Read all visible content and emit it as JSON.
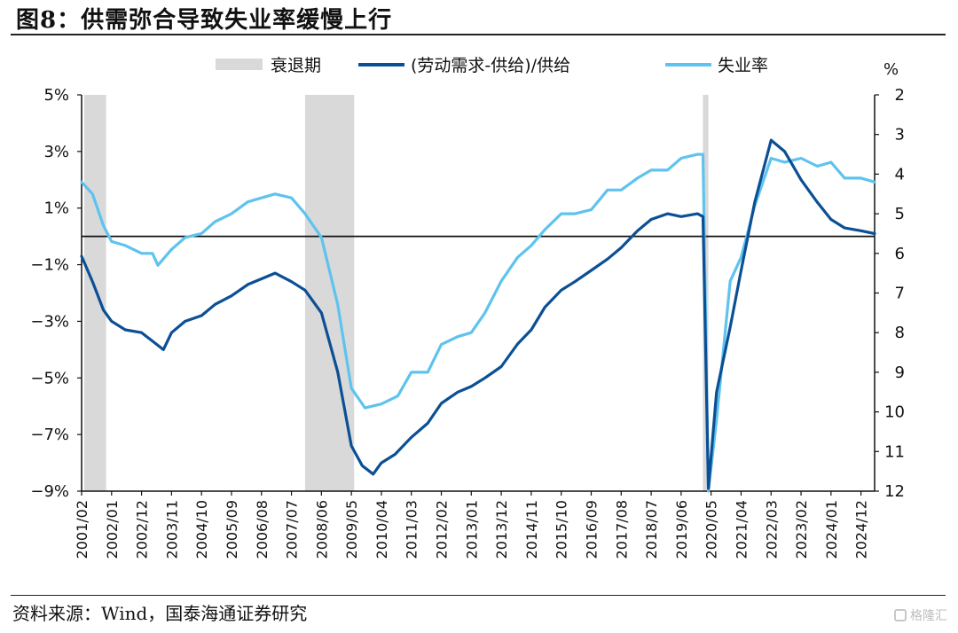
{
  "title": "图8：供需弥合导致失业率缓慢上行",
  "source": "资料来源：Wind，国泰海通证券研究",
  "watermark": "格隆汇",
  "colors": {
    "demand_supply": "#0b4f95",
    "unemployment": "#5ec3ee",
    "recession": "#d9d9d9",
    "axis": "#111111"
  },
  "chart_data": {
    "type": "line",
    "legend": [
      "衰退期",
      "(劳动需求-供给)/供给",
      "失业率"
    ],
    "right_unit": "%",
    "left_axis": {
      "ticks": [
        "5%",
        "3%",
        "1%",
        "-1%",
        "-3%",
        "-5%",
        "-7%",
        "-9%"
      ],
      "range": [
        -9,
        5
      ]
    },
    "right_axis": {
      "ticks": [
        "2",
        "3",
        "4",
        "5",
        "6",
        "7",
        "8",
        "9",
        "10",
        "11",
        "12"
      ],
      "range": [
        12,
        2
      ],
      "inverted": true
    },
    "x_ticks": [
      "2001/02",
      "2002/01",
      "2002/12",
      "2003/11",
      "2004/10",
      "2005/09",
      "2006/08",
      "2007/07",
      "2008/06",
      "2009/05",
      "2010/04",
      "2011/03",
      "2012/02",
      "2013/01",
      "2013/12",
      "2014/11",
      "2015/10",
      "2016/09",
      "2017/08",
      "2018/07",
      "2019/06",
      "2020/05",
      "2021/04",
      "2022/03",
      "2023/02",
      "2024/01",
      "2024/12"
    ],
    "recessions": [
      [
        "2001/03",
        "2001/11"
      ],
      [
        "2007/12",
        "2009/06"
      ],
      [
        "2020/02",
        "2020/04"
      ]
    ],
    "series": [
      {
        "name": "(劳动需求-供给)/供给",
        "axis": "left",
        "points": [
          [
            "2001/02",
            -0.7
          ],
          [
            "2001/06",
            -1.6
          ],
          [
            "2001/10",
            -2.6
          ],
          [
            "2002/01",
            -3.0
          ],
          [
            "2002/06",
            -3.3
          ],
          [
            "2002/12",
            -3.4
          ],
          [
            "2003/04",
            -3.7
          ],
          [
            "2003/08",
            -4.0
          ],
          [
            "2003/11",
            -3.4
          ],
          [
            "2004/04",
            -3.0
          ],
          [
            "2004/10",
            -2.8
          ],
          [
            "2005/03",
            -2.4
          ],
          [
            "2005/09",
            -2.1
          ],
          [
            "2006/03",
            -1.7
          ],
          [
            "2006/08",
            -1.5
          ],
          [
            "2007/01",
            -1.3
          ],
          [
            "2007/07",
            -1.6
          ],
          [
            "2007/12",
            -1.9
          ],
          [
            "2008/06",
            -2.7
          ],
          [
            "2008/12",
            -4.8
          ],
          [
            "2009/05",
            -7.4
          ],
          [
            "2009/09",
            -8.1
          ],
          [
            "2010/01",
            -8.4
          ],
          [
            "2010/04",
            -8.0
          ],
          [
            "2010/09",
            -7.7
          ],
          [
            "2011/03",
            -7.1
          ],
          [
            "2011/09",
            -6.6
          ],
          [
            "2012/02",
            -5.9
          ],
          [
            "2012/08",
            -5.5
          ],
          [
            "2013/01",
            -5.3
          ],
          [
            "2013/06",
            -5.0
          ],
          [
            "2013/12",
            -4.6
          ],
          [
            "2014/06",
            -3.8
          ],
          [
            "2014/11",
            -3.3
          ],
          [
            "2015/04",
            -2.5
          ],
          [
            "2015/10",
            -1.9
          ],
          [
            "2016/03",
            -1.6
          ],
          [
            "2016/09",
            -1.2
          ],
          [
            "2017/03",
            -0.8
          ],
          [
            "2017/08",
            -0.4
          ],
          [
            "2018/02",
            0.2
          ],
          [
            "2018/07",
            0.6
          ],
          [
            "2019/01",
            0.8
          ],
          [
            "2019/06",
            0.7
          ],
          [
            "2019/12",
            0.8
          ],
          [
            "2020/02",
            0.7
          ],
          [
            "2020/04",
            -8.9
          ],
          [
            "2020/07",
            -5.5
          ],
          [
            "2020/12",
            -3.2
          ],
          [
            "2021/04",
            -1.2
          ],
          [
            "2021/09",
            1.2
          ],
          [
            "2022/03",
            3.4
          ],
          [
            "2022/08",
            3.0
          ],
          [
            "2023/02",
            2.0
          ],
          [
            "2023/08",
            1.2
          ],
          [
            "2024/01",
            0.6
          ],
          [
            "2024/06",
            0.3
          ],
          [
            "2024/12",
            0.2
          ],
          [
            "2025/05",
            0.1
          ]
        ]
      },
      {
        "name": "失业率",
        "axis": "right",
        "points": [
          [
            "2001/02",
            4.2
          ],
          [
            "2001/06",
            4.5
          ],
          [
            "2001/10",
            5.3
          ],
          [
            "2002/01",
            5.7
          ],
          [
            "2002/06",
            5.8
          ],
          [
            "2002/12",
            6.0
          ],
          [
            "2003/04",
            6.0
          ],
          [
            "2003/06",
            6.3
          ],
          [
            "2003/11",
            5.9
          ],
          [
            "2004/04",
            5.6
          ],
          [
            "2004/10",
            5.5
          ],
          [
            "2005/03",
            5.2
          ],
          [
            "2005/09",
            5.0
          ],
          [
            "2006/03",
            4.7
          ],
          [
            "2006/08",
            4.6
          ],
          [
            "2007/01",
            4.5
          ],
          [
            "2007/07",
            4.6
          ],
          [
            "2007/12",
            5.0
          ],
          [
            "2008/06",
            5.6
          ],
          [
            "2008/12",
            7.3
          ],
          [
            "2009/05",
            9.4
          ],
          [
            "2009/10",
            9.9
          ],
          [
            "2010/04",
            9.8
          ],
          [
            "2010/10",
            9.6
          ],
          [
            "2011/03",
            9.0
          ],
          [
            "2011/09",
            9.0
          ],
          [
            "2012/02",
            8.3
          ],
          [
            "2012/08",
            8.1
          ],
          [
            "2013/01",
            8.0
          ],
          [
            "2013/06",
            7.5
          ],
          [
            "2013/12",
            6.7
          ],
          [
            "2014/06",
            6.1
          ],
          [
            "2014/11",
            5.8
          ],
          [
            "2015/04",
            5.4
          ],
          [
            "2015/10",
            5.0
          ],
          [
            "2016/03",
            5.0
          ],
          [
            "2016/09",
            4.9
          ],
          [
            "2017/03",
            4.4
          ],
          [
            "2017/08",
            4.4
          ],
          [
            "2018/02",
            4.1
          ],
          [
            "2018/07",
            3.9
          ],
          [
            "2019/01",
            3.9
          ],
          [
            "2019/06",
            3.6
          ],
          [
            "2019/12",
            3.5
          ],
          [
            "2020/02",
            3.5
          ],
          [
            "2020/04",
            12.0
          ],
          [
            "2020/07",
            10.2
          ],
          [
            "2020/12",
            6.7
          ],
          [
            "2021/04",
            6.1
          ],
          [
            "2021/09",
            4.8
          ],
          [
            "2022/03",
            3.6
          ],
          [
            "2022/08",
            3.7
          ],
          [
            "2023/02",
            3.6
          ],
          [
            "2023/08",
            3.8
          ],
          [
            "2024/01",
            3.7
          ],
          [
            "2024/06",
            4.1
          ],
          [
            "2024/12",
            4.1
          ],
          [
            "2025/05",
            4.2
          ]
        ]
      }
    ]
  }
}
